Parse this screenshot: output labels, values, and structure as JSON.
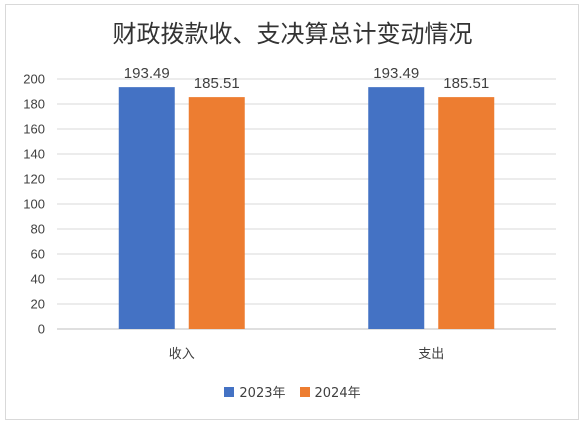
{
  "chart_data": {
    "type": "bar",
    "title": "财政拨款收、支决算总计变动情况",
    "categories": [
      "收入",
      "支出"
    ],
    "series": [
      {
        "name": "2023年",
        "values": [
          193.49,
          193.49
        ],
        "color": "#4472C4"
      },
      {
        "name": "2024年",
        "values": [
          185.51,
          185.51
        ],
        "color": "#ED7D31"
      }
    ],
    "data_labels": [
      [
        "193.49",
        "193.49"
      ],
      [
        "185.51",
        "185.51"
      ]
    ],
    "ylim": [
      0,
      200
    ],
    "yticks": [
      0,
      20,
      40,
      60,
      80,
      100,
      120,
      140,
      160,
      180,
      200
    ],
    "grid": true,
    "legend_position": "bottom"
  }
}
